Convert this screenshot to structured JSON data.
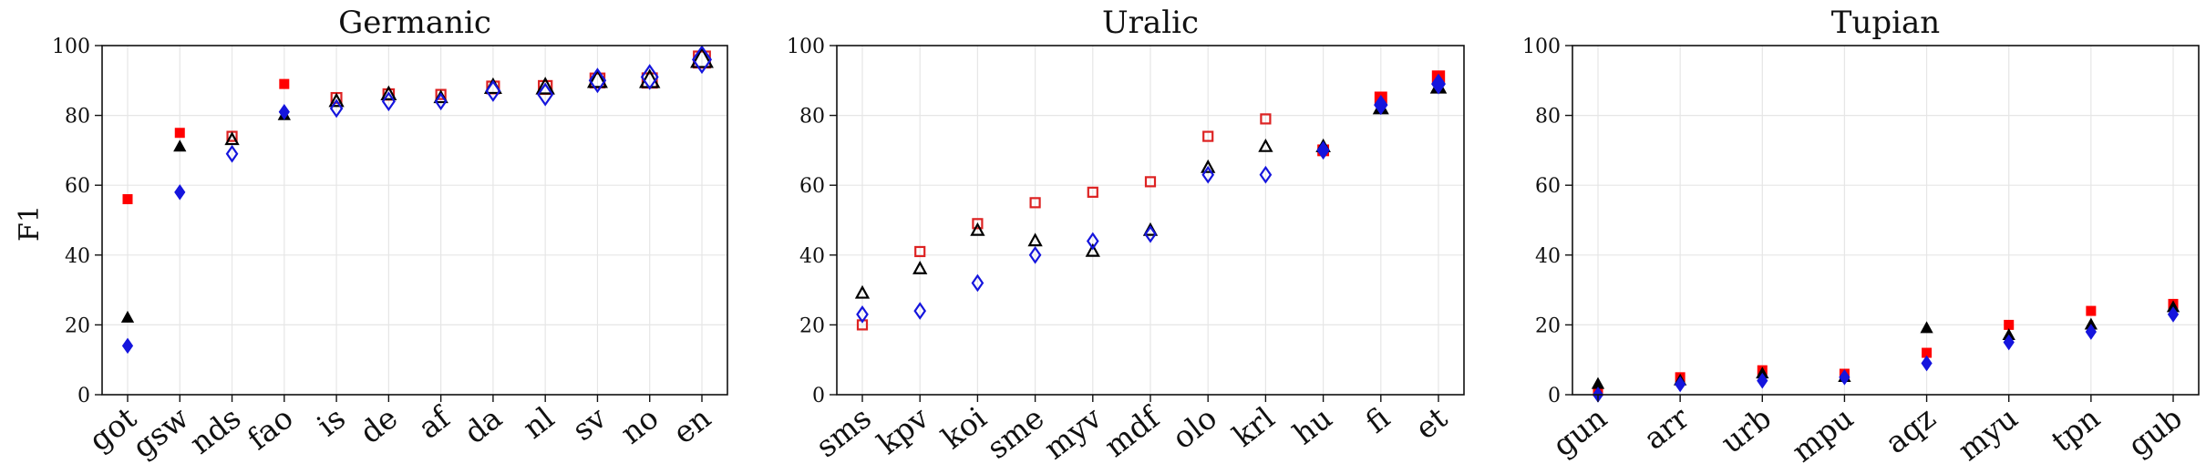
{
  "ylabel": "F1",
  "series_colors": {
    "sq_filled": "#ff0000",
    "sq_open": "#dd2222",
    "tri": "#000000",
    "dia": "#1515dd"
  },
  "chart_data": [
    {
      "type": "scatter",
      "title": "Germanic",
      "categories": [
        "got",
        "gsw",
        "nds",
        "fao",
        "is",
        "de",
        "af",
        "da",
        "nl",
        "sv",
        "no",
        "en"
      ],
      "ylim": [
        0,
        100
      ],
      "yticks": [
        0,
        20,
        40,
        60,
        80,
        100
      ],
      "grid": true,
      "series": [
        {
          "marker": "square",
          "values": [
            56,
            75,
            74,
            89,
            85,
            86,
            86,
            88,
            88,
            90,
            90,
            96
          ],
          "filled": [
            true,
            true,
            false,
            true,
            false,
            false,
            false,
            false,
            false,
            false,
            false,
            false
          ],
          "size": [
            0.18,
            0.28,
            0.38,
            0.45,
            0.55,
            0.58,
            0.5,
            0.66,
            0.72,
            0.78,
            0.8,
            0.9
          ]
        },
        {
          "marker": "triangle",
          "values": [
            22,
            71,
            73,
            80,
            84,
            86,
            85,
            88,
            88,
            90,
            90,
            96
          ],
          "filled": [
            true,
            true,
            false,
            true,
            false,
            false,
            false,
            false,
            false,
            false,
            false,
            false
          ],
          "size": [
            0.18,
            0.28,
            0.38,
            0.45,
            0.55,
            0.58,
            0.5,
            0.66,
            0.72,
            0.78,
            0.8,
            0.9
          ]
        },
        {
          "marker": "diamond",
          "values": [
            14,
            58,
            69,
            81,
            82,
            84,
            84,
            87,
            86,
            90,
            91,
            96
          ],
          "filled": [
            true,
            true,
            false,
            true,
            false,
            false,
            false,
            false,
            false,
            false,
            false,
            false
          ],
          "size": [
            0.18,
            0.28,
            0.38,
            0.45,
            0.55,
            0.58,
            0.5,
            0.66,
            0.72,
            0.78,
            0.8,
            0.9
          ]
        }
      ]
    },
    {
      "type": "scatter",
      "title": "Uralic",
      "categories": [
        "sms",
        "kpv",
        "koi",
        "sme",
        "myv",
        "mdf",
        "olo",
        "krl",
        "hu",
        "fi",
        "et"
      ],
      "ylim": [
        0,
        100
      ],
      "yticks": [
        0,
        20,
        40,
        60,
        80,
        100
      ],
      "grid": true,
      "series": [
        {
          "marker": "square",
          "values": [
            20,
            41,
            49,
            55,
            58,
            61,
            74,
            79,
            70,
            85,
            91
          ],
          "filled": [
            false,
            false,
            false,
            false,
            false,
            false,
            false,
            false,
            true,
            true,
            true
          ],
          "size": [
            0.18,
            0.3,
            0.25,
            0.26,
            0.3,
            0.22,
            0.3,
            0.2,
            0.55,
            0.6,
            0.62
          ]
        },
        {
          "marker": "triangle",
          "values": [
            29,
            36,
            47,
            44,
            41,
            47,
            65,
            71,
            71,
            82,
            88
          ],
          "filled": [
            false,
            false,
            false,
            false,
            false,
            false,
            false,
            false,
            true,
            true,
            true
          ],
          "size": [
            0.18,
            0.3,
            0.25,
            0.26,
            0.3,
            0.22,
            0.3,
            0.2,
            0.55,
            0.6,
            0.62
          ]
        },
        {
          "marker": "diamond",
          "values": [
            23,
            24,
            32,
            40,
            44,
            46,
            63,
            63,
            70,
            83,
            89
          ],
          "filled": [
            false,
            false,
            false,
            false,
            false,
            false,
            false,
            false,
            true,
            true,
            true
          ],
          "size": [
            0.18,
            0.3,
            0.25,
            0.26,
            0.3,
            0.22,
            0.3,
            0.2,
            0.55,
            0.6,
            0.62
          ]
        }
      ]
    },
    {
      "type": "scatter",
      "title": "Tupian",
      "categories": [
        "gun",
        "arr",
        "urb",
        "mpu",
        "aqz",
        "myu",
        "tpn",
        "gub"
      ],
      "ylim": [
        0,
        100
      ],
      "yticks": [
        0,
        20,
        40,
        60,
        80,
        100
      ],
      "grid": true,
      "series": [
        {
          "marker": "square",
          "values": [
            1,
            5,
            7,
            6,
            12,
            20,
            24,
            26
          ],
          "filled": [
            true,
            true,
            true,
            true,
            true,
            true,
            true,
            true
          ],
          "size": [
            0.3,
            0.14,
            0.3,
            0.18,
            0.16,
            0.3,
            0.16,
            0.3
          ]
        },
        {
          "marker": "triangle",
          "values": [
            3,
            4,
            6,
            5,
            19,
            17,
            20,
            25
          ],
          "filled": [
            true,
            true,
            true,
            true,
            true,
            true,
            true,
            true
          ],
          "size": [
            0.3,
            0.14,
            0.3,
            0.18,
            0.16,
            0.3,
            0.16,
            0.3
          ]
        },
        {
          "marker": "diamond",
          "values": [
            0,
            3,
            4,
            5,
            9,
            15,
            18,
            23
          ],
          "filled": [
            true,
            true,
            true,
            true,
            true,
            true,
            true,
            true
          ],
          "size": [
            0.3,
            0.14,
            0.3,
            0.18,
            0.16,
            0.3,
            0.16,
            0.3
          ]
        }
      ]
    }
  ]
}
